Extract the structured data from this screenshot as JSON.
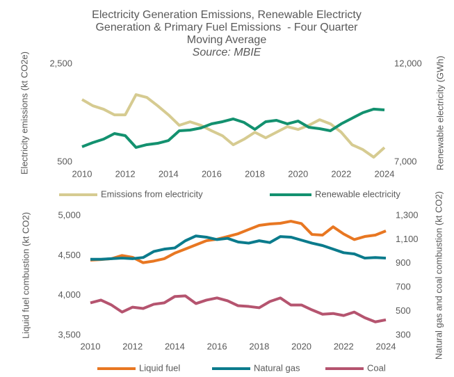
{
  "chart_data": [
    {
      "type": "line",
      "title": [
        "Electricity Generation Emissions, Renewable Electricty",
        "Generation & Primary Fuel Emissions  - Four Quarter",
        "Moving Average"
      ],
      "subtitle": "Source: MBIE",
      "ylabel": "Electricity emissions (kt CO2e)",
      "y2label": "Renewable electricity (GWh)",
      "x": [
        2010,
        2010.5,
        2011,
        2011.5,
        2012,
        2012.5,
        2013,
        2013.5,
        2014,
        2014.5,
        2015,
        2015.5,
        2016,
        2016.5,
        2017,
        2017.5,
        2018,
        2018.5,
        2019,
        2019.5,
        2020,
        2020.5,
        2021,
        2021.5,
        2022,
        2022.5,
        2023,
        2023.5,
        2024
      ],
      "xlim": [
        2010,
        2024
      ],
      "xticks": [
        2010,
        2012,
        2014,
        2016,
        2018,
        2020,
        2022,
        2024
      ],
      "ylim": [
        500,
        2500
      ],
      "yticks": [
        500,
        {
          "value": 2500,
          "label": "2,500"
        }
      ],
      "y2lim": [
        7000,
        12000
      ],
      "y2ticks": [
        {
          "value": 7000,
          "label": "7,000"
        },
        {
          "value": 12000,
          "label": "12,000"
        }
      ],
      "legend": "bottom",
      "grid": false,
      "series": [
        {
          "name": "Emissions from electricity",
          "color": "#d6cb91",
          "values": [
            1776,
            1648,
            1577,
            1463,
            1463,
            1875,
            1818,
            1648,
            1463,
            1250,
            1321,
            1250,
            1137,
            1037,
            853,
            966,
            1108,
            995,
            1108,
            1222,
            1165,
            1250,
            1364,
            1279,
            1108,
            853,
            754,
            600,
            796
          ]
        },
        {
          "name": "Renewable electricity",
          "color": "#13916f",
          "axis": "y2",
          "values": [
            7780,
            7993,
            8170,
            8454,
            8347,
            7745,
            7887,
            7957,
            8099,
            8596,
            8631,
            8738,
            8950,
            9057,
            9199,
            9021,
            8667,
            9057,
            9128,
            8950,
            9092,
            8773,
            8702,
            8596,
            8950,
            9234,
            9518,
            9700,
            9660
          ]
        }
      ]
    },
    {
      "type": "line",
      "ylabel": "Liquid fuel combustion (kt CO2)",
      "y2label": "Natural gas and coal combustion (kt CO2)",
      "x": [
        2010,
        2010.5,
        2011,
        2011.5,
        2012,
        2012.5,
        2013,
        2013.5,
        2014,
        2014.5,
        2015,
        2015.5,
        2016,
        2016.5,
        2017,
        2017.5,
        2018,
        2018.5,
        2019,
        2019.5,
        2020,
        2020.5,
        2021,
        2021.5,
        2022,
        2022.5,
        2023,
        2023.5,
        2024
      ],
      "xlim": [
        2010,
        2024
      ],
      "xticks": [
        2010,
        2012,
        2014,
        2016,
        2018,
        2020,
        2022,
        2024
      ],
      "ylim": [
        3500,
        5000
      ],
      "yticks": [
        {
          "value": 3500,
          "label": "3,500"
        },
        {
          "value": 4000,
          "label": "4,000"
        },
        {
          "value": 4500,
          "label": "4,500"
        },
        {
          "value": 5000,
          "label": "5,000"
        }
      ],
      "y2lim": [
        300,
        1300
      ],
      "y2ticks": [
        300,
        500,
        700,
        900,
        {
          "value": 1100,
          "label": "1,100"
        },
        {
          "value": 1300,
          "label": "1,300"
        }
      ],
      "legend": "bottom",
      "grid": false,
      "series": [
        {
          "name": "Liquid fuel",
          "color": "#e87722",
          "values": [
            4442,
            4450,
            4460,
            4500,
            4477,
            4410,
            4430,
            4460,
            4530,
            4581,
            4634,
            4686,
            4704,
            4738,
            4773,
            4826,
            4878,
            4895,
            4904,
            4930,
            4900,
            4764,
            4756,
            4860,
            4770,
            4700,
            4738,
            4756,
            4808
          ]
        },
        {
          "name": "Natural gas",
          "color": "#0b7b8c",
          "axis": "y2",
          "values": [
            935,
            935,
            940,
            945,
            940,
            950,
            1000,
            1020,
            1030,
            1090,
            1130,
            1120,
            1100,
            1110,
            1080,
            1070,
            1090,
            1075,
            1125,
            1120,
            1095,
            1070,
            1050,
            1020,
            990,
            980,
            945,
            950,
            945
          ]
        },
        {
          "name": "Coal",
          "color": "#b5546f",
          "axis": "y2",
          "values": [
            571,
            594,
            553,
            494,
            535,
            524,
            559,
            571,
            624,
            629,
            565,
            594,
            612,
            588,
            547,
            541,
            530,
            582,
            612,
            553,
            553,
            512,
            476,
            482,
            465,
            494,
            447,
            412,
            429
          ]
        }
      ]
    }
  ]
}
